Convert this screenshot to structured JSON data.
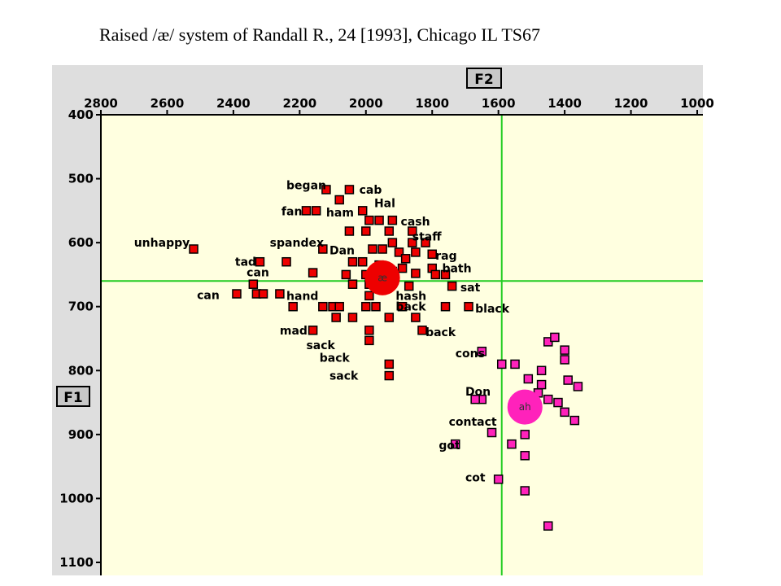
{
  "slide": {
    "title": "Raised /æ/ system of Randall R., 24 [1993], Chicago IL TS67"
  },
  "colors": {
    "panel": "#dedede",
    "plot_bg": "#ffffe0",
    "gridline": "#22cc22",
    "ae_fill": "#ee0000",
    "o_fill": "#ff22bb",
    "marker_stroke": "#000000",
    "axis_label_fill": "#c8c8c8"
  },
  "chart_data": {
    "type": "scatter",
    "x_axis": {
      "label": "F2",
      "reversed": true,
      "range": [
        2800,
        1000
      ],
      "ticks": [
        2800,
        2600,
        2400,
        2200,
        2000,
        1800,
        1600,
        1400,
        1200,
        1000
      ],
      "position": "top"
    },
    "y_axis": {
      "label": "F1",
      "reversed": true,
      "range": [
        400,
        1100
      ],
      "ticks": [
        400,
        500,
        600,
        700,
        800,
        900,
        1000,
        1100
      ]
    },
    "reference_lines": {
      "x": 1590,
      "y": 660
    },
    "series": [
      {
        "vowel": "ae",
        "mean": {
          "label": "æ",
          "x": 1950,
          "y": 655
        },
        "points": [
          {
            "x": 2120,
            "y": 517
          },
          {
            "x": 2050,
            "y": 517
          },
          {
            "x": 2080,
            "y": 533
          },
          {
            "x": 2010,
            "y": 550
          },
          {
            "x": 2180,
            "y": 550
          },
          {
            "x": 2150,
            "y": 550
          },
          {
            "x": 2050,
            "y": 582
          },
          {
            "x": 2000,
            "y": 582
          },
          {
            "x": 1960,
            "y": 565
          },
          {
            "x": 1920,
            "y": 565
          },
          {
            "x": 1990,
            "y": 565
          },
          {
            "x": 1860,
            "y": 582
          },
          {
            "x": 1930,
            "y": 582
          },
          {
            "x": 1920,
            "y": 600
          },
          {
            "x": 1860,
            "y": 600
          },
          {
            "x": 1820,
            "y": 600
          },
          {
            "x": 2520,
            "y": 610
          },
          {
            "x": 2130,
            "y": 610
          },
          {
            "x": 1980,
            "y": 610
          },
          {
            "x": 1950,
            "y": 610
          },
          {
            "x": 1900,
            "y": 615
          },
          {
            "x": 2320,
            "y": 630
          },
          {
            "x": 2240,
            "y": 630
          },
          {
            "x": 2040,
            "y": 630
          },
          {
            "x": 2010,
            "y": 630
          },
          {
            "x": 1960,
            "y": 635
          },
          {
            "x": 1880,
            "y": 625
          },
          {
            "x": 1850,
            "y": 615
          },
          {
            "x": 1800,
            "y": 618
          },
          {
            "x": 2160,
            "y": 647
          },
          {
            "x": 2060,
            "y": 650
          },
          {
            "x": 2000,
            "y": 650
          },
          {
            "x": 1920,
            "y": 645
          },
          {
            "x": 1890,
            "y": 640
          },
          {
            "x": 1850,
            "y": 648
          },
          {
            "x": 1800,
            "y": 640
          },
          {
            "x": 1760,
            "y": 650
          },
          {
            "x": 1790,
            "y": 650
          },
          {
            "x": 2040,
            "y": 665
          },
          {
            "x": 1990,
            "y": 665
          },
          {
            "x": 1870,
            "y": 668
          },
          {
            "x": 1740,
            "y": 668
          },
          {
            "x": 2340,
            "y": 665
          },
          {
            "x": 2390,
            "y": 680
          },
          {
            "x": 2330,
            "y": 680
          },
          {
            "x": 2310,
            "y": 680
          },
          {
            "x": 2260,
            "y": 680
          },
          {
            "x": 1990,
            "y": 683
          },
          {
            "x": 2220,
            "y": 700
          },
          {
            "x": 2130,
            "y": 700
          },
          {
            "x": 2100,
            "y": 700
          },
          {
            "x": 2080,
            "y": 700
          },
          {
            "x": 2000,
            "y": 700
          },
          {
            "x": 1970,
            "y": 700
          },
          {
            "x": 1890,
            "y": 700
          },
          {
            "x": 1760,
            "y": 700
          },
          {
            "x": 1690,
            "y": 700
          },
          {
            "x": 2090,
            "y": 717
          },
          {
            "x": 2040,
            "y": 717
          },
          {
            "x": 1930,
            "y": 717
          },
          {
            "x": 1850,
            "y": 717
          },
          {
            "x": 2160,
            "y": 737
          },
          {
            "x": 1990,
            "y": 737
          },
          {
            "x": 1830,
            "y": 737
          },
          {
            "x": 1990,
            "y": 753
          },
          {
            "x": 1930,
            "y": 790
          },
          {
            "x": 1930,
            "y": 808
          }
        ],
        "labels": [
          {
            "text": "began",
            "x": 2240,
            "y": 510
          },
          {
            "text": "cab",
            "x": 2020,
            "y": 517
          },
          {
            "text": "Hal",
            "x": 1975,
            "y": 538
          },
          {
            "text": "fan",
            "x": 2255,
            "y": 551
          },
          {
            "text": "ham",
            "x": 2120,
            "y": 553
          },
          {
            "text": "cash",
            "x": 1895,
            "y": 567
          },
          {
            "text": "staff",
            "x": 1860,
            "y": 590
          },
          {
            "text": "unhappy",
            "x": 2700,
            "y": 600
          },
          {
            "text": "spandex",
            "x": 2290,
            "y": 600
          },
          {
            "text": "Dan",
            "x": 2110,
            "y": 612
          },
          {
            "text": "rag",
            "x": 1790,
            "y": 620
          },
          {
            "text": "tad",
            "x": 2395,
            "y": 630
          },
          {
            "text": "bath",
            "x": 1770,
            "y": 640
          },
          {
            "text": "can",
            "x": 2360,
            "y": 646
          },
          {
            "text": "sat",
            "x": 1715,
            "y": 670
          },
          {
            "text": "can",
            "x": 2510,
            "y": 682
          },
          {
            "text": "hand",
            "x": 2240,
            "y": 683
          },
          {
            "text": "hash",
            "x": 1910,
            "y": 683
          },
          {
            "text": "back",
            "x": 1910,
            "y": 700
          },
          {
            "text": "black",
            "x": 1670,
            "y": 703
          },
          {
            "text": "mad",
            "x": 2260,
            "y": 737
          },
          {
            "text": "back",
            "x": 1820,
            "y": 740
          },
          {
            "text": "sack",
            "x": 2180,
            "y": 760
          },
          {
            "text": "back",
            "x": 2140,
            "y": 780
          },
          {
            "text": "sack",
            "x": 2110,
            "y": 808
          }
        ]
      },
      {
        "vowel": "ah",
        "mean": {
          "label": "ah",
          "x": 1520,
          "y": 857
        },
        "points": [
          {
            "x": 1450,
            "y": 755
          },
          {
            "x": 1430,
            "y": 748
          },
          {
            "x": 1400,
            "y": 768
          },
          {
            "x": 1650,
            "y": 770
          },
          {
            "x": 1400,
            "y": 783
          },
          {
            "x": 1590,
            "y": 790
          },
          {
            "x": 1550,
            "y": 790
          },
          {
            "x": 1470,
            "y": 800
          },
          {
            "x": 1510,
            "y": 813
          },
          {
            "x": 1390,
            "y": 815
          },
          {
            "x": 1360,
            "y": 825
          },
          {
            "x": 1470,
            "y": 822
          },
          {
            "x": 1480,
            "y": 835
          },
          {
            "x": 1540,
            "y": 845
          },
          {
            "x": 1650,
            "y": 845
          },
          {
            "x": 1670,
            "y": 845
          },
          {
            "x": 1450,
            "y": 845
          },
          {
            "x": 1420,
            "y": 850
          },
          {
            "x": 1400,
            "y": 865
          },
          {
            "x": 1370,
            "y": 878
          },
          {
            "x": 1620,
            "y": 897
          },
          {
            "x": 1520,
            "y": 900
          },
          {
            "x": 1730,
            "y": 915
          },
          {
            "x": 1560,
            "y": 915
          },
          {
            "x": 1520,
            "y": 933
          },
          {
            "x": 1600,
            "y": 970
          },
          {
            "x": 1520,
            "y": 988
          },
          {
            "x": 1450,
            "y": 1043
          }
        ],
        "labels": [
          {
            "text": "cons",
            "x": 1730,
            "y": 773
          },
          {
            "text": "Don",
            "x": 1700,
            "y": 833
          },
          {
            "text": "contact",
            "x": 1750,
            "y": 880
          },
          {
            "text": "got",
            "x": 1780,
            "y": 917
          },
          {
            "text": "cot",
            "x": 1700,
            "y": 967
          }
        ]
      }
    ]
  }
}
